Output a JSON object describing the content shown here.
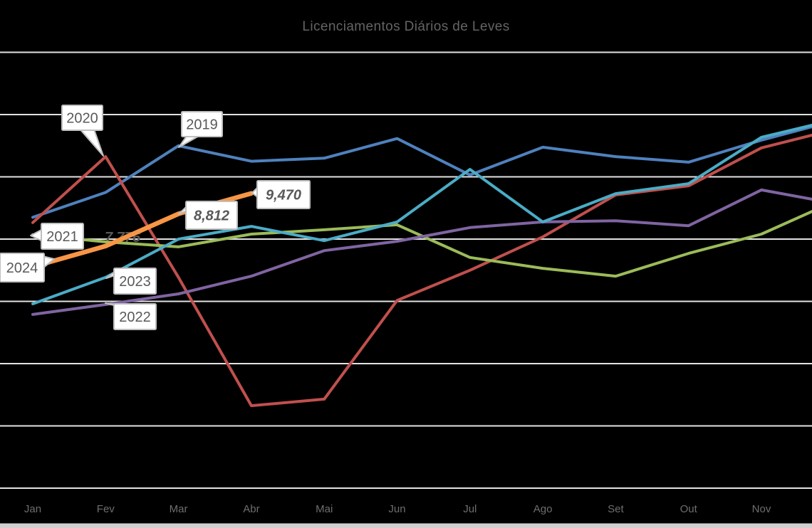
{
  "chart_data": {
    "type": "line",
    "title": "Licenciamentos Diários de Leves",
    "categories": [
      "Jan",
      "Fev",
      "Mar",
      "Abr",
      "Mai",
      "Jun",
      "Jul",
      "Ago",
      "Set",
      "Out",
      "Nov"
    ],
    "ylim": [
      0,
      14000
    ],
    "gridline_step": 2000,
    "y_axis_labels_visible": false,
    "grid": "horizontal gridlines only",
    "legend": "none (series identified by inline callout labels)",
    "x_axis_note": "lines continue past Nov to the cropped right edge of the image",
    "series": [
      {
        "name": "2019",
        "color": "#4F81BD",
        "values": [
          8700,
          9500,
          11000,
          10500,
          10600,
          11230,
          10060,
          10950,
          10650,
          10470,
          11180
        ],
        "clipped_next": 11800
      },
      {
        "name": "2020",
        "color": "#C0504D",
        "values": [
          8530,
          10650,
          6770,
          2650,
          2860,
          6030,
          7000,
          8070,
          9420,
          9710,
          10930
        ],
        "clipped_next": 11520
      },
      {
        "name": "2021",
        "color": "#9BBB59",
        "values": [
          8140,
          7910,
          7750,
          8160,
          8300,
          8460,
          7410,
          7060,
          6810,
          7540,
          8160
        ],
        "clipped_next": 9210
      },
      {
        "name": "2022",
        "color": "#8064A2",
        "values": [
          5580,
          5900,
          6240,
          6810,
          7630,
          7930,
          8370,
          8550,
          8590,
          8430,
          9580
        ],
        "clipped_next": 9150
      },
      {
        "name": "2023",
        "color": "#4BACC6",
        "values": [
          5920,
          6770,
          8000,
          8410,
          7950,
          8550,
          10240,
          8550,
          9460,
          9780,
          11270
        ],
        "clipped_next": 11830
      },
      {
        "name": "2024",
        "color": "#F79646",
        "values": [
          7110,
          7776,
          8812,
          9470
        ],
        "thick": true,
        "note": "series ends at Abr"
      }
    ],
    "annotations": [
      {
        "id": "y2020",
        "text": "2020",
        "kind": "year-callout",
        "series": "2020",
        "month": "Fev"
      },
      {
        "id": "y2019",
        "text": "2019",
        "kind": "year-callout",
        "series": "2019",
        "month": "Mar"
      },
      {
        "id": "y2021",
        "text": "2021",
        "kind": "year-callout",
        "series": "2021",
        "month": "Jan"
      },
      {
        "id": "y2024",
        "text": "2024",
        "kind": "year-callout",
        "series": "2024",
        "month": "Jan"
      },
      {
        "id": "y2023",
        "text": "2023",
        "kind": "year-callout",
        "series": "2023",
        "month": "Fev"
      },
      {
        "id": "y2022",
        "text": "2022",
        "kind": "year-callout",
        "series": "2022",
        "month": "Fev"
      },
      {
        "id": "v7776",
        "text": "7,776",
        "kind": "value-label-plain",
        "series": "2024",
        "month": "Fev"
      },
      {
        "id": "v8812",
        "text": "8,812",
        "kind": "value-callout",
        "series": "2024",
        "month": "Mar"
      },
      {
        "id": "v9470",
        "text": "9,470",
        "kind": "value-callout",
        "series": "2024",
        "month": "Abr"
      }
    ]
  },
  "colors": {
    "background": "#000000",
    "gridline": "#e2e2e2",
    "axis_line": "#e2e2e2",
    "title_text": "#646464",
    "axis_text": "#6e6e6e",
    "callout_bg": "#ffffff",
    "callout_border": "#bfbfbf",
    "callout_text": "#595959",
    "bottom_strip": "#cfcfcf"
  }
}
